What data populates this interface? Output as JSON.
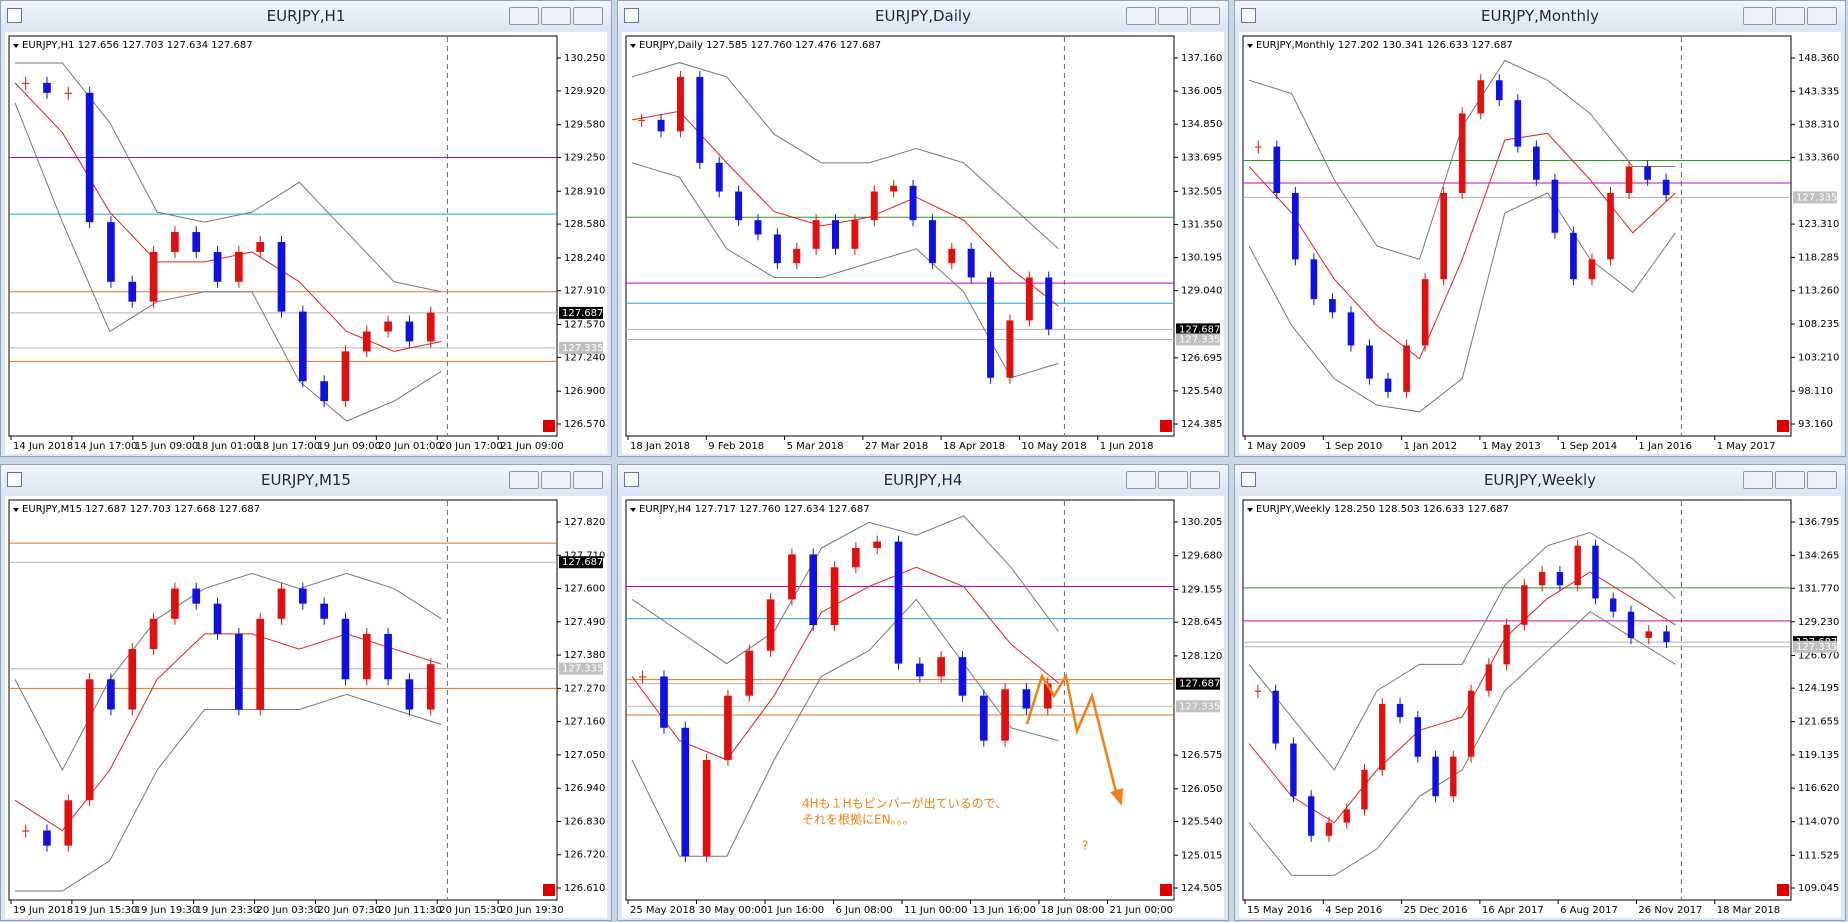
{
  "windows": [
    {
      "title": "EURJPY,H1",
      "info": "EURJPY,H1  127.656 127.703 127.634 127.687",
      "ylim": [
        126.57,
        130.25
      ],
      "yticks": [
        {
          "value": 130.25,
          "label": "130.250"
        },
        {
          "value": 129.92,
          "label": "129.920"
        },
        {
          "value": 129.58,
          "label": "129.580"
        },
        {
          "value": 129.25,
          "label": "129.250"
        },
        {
          "value": 128.91,
          "label": "128.910"
        },
        {
          "value": 128.58,
          "label": "128.580"
        },
        {
          "value": 128.24,
          "label": "128.240"
        },
        {
          "value": 127.91,
          "label": "127.910"
        },
        {
          "value": 127.57,
          "label": "127.570"
        },
        {
          "value": 127.24,
          "label": "127.240"
        },
        {
          "value": 126.9,
          "label": "126.900"
        },
        {
          "value": 126.57,
          "label": "126.570"
        }
      ],
      "xticks": [
        "14 Jun 2018",
        "14 Jun 17:00",
        "15 Jun 09:00",
        "18 Jun 01:00",
        "18 Jun 17:00",
        "19 Jun 09:00",
        "20 Jun 01:00",
        "20 Jun 17:00",
        "21 Jun 09:00"
      ],
      "closes": [
        130.0,
        129.9,
        129.9,
        128.6,
        128.0,
        127.8,
        128.3,
        128.5,
        128.3,
        128.0,
        128.3,
        128.4,
        127.7,
        127.0,
        126.8,
        127.3,
        127.5,
        127.6,
        127.4,
        127.69
      ],
      "upper": [
        130.2,
        130.2,
        129.6,
        128.7,
        128.6,
        128.7,
        129.0,
        128.5,
        128.0,
        127.9
      ],
      "middle": [
        130.0,
        129.5,
        128.7,
        128.2,
        128.2,
        128.3,
        128.0,
        127.5,
        127.3,
        127.4
      ],
      "lower": [
        129.8,
        128.6,
        127.5,
        127.8,
        127.9,
        127.9,
        127.0,
        126.6,
        126.8,
        127.1
      ],
      "hlines": [
        {
          "value": 129.25,
          "color": "#c000c0"
        },
        {
          "value": 128.68,
          "color": "#1fa8d0"
        },
        {
          "value": 127.9,
          "color": "#e07020"
        },
        {
          "value": 127.687,
          "color": "#b0b0b0"
        },
        {
          "value": 127.335,
          "color": "#b0b0b0"
        },
        {
          "value": 127.2,
          "color": "#e07020"
        }
      ],
      "tags": [
        {
          "value": 127.687,
          "label": "127.687",
          "dark": true
        },
        {
          "value": 127.335,
          "label": "127.335",
          "dark": false
        }
      ]
    },
    {
      "title": "EURJPY,Daily",
      "info": "EURJPY,Daily  127.585 127.760 127.476 127.687",
      "ylim": [
        124.385,
        137.16
      ],
      "yticks": [
        {
          "value": 137.16,
          "label": "137.160"
        },
        {
          "value": 136.005,
          "label": "136.005"
        },
        {
          "value": 134.85,
          "label": "134.850"
        },
        {
          "value": 133.695,
          "label": "133.695"
        },
        {
          "value": 132.505,
          "label": "132.505"
        },
        {
          "value": 131.35,
          "label": "131.350"
        },
        {
          "value": 130.195,
          "label": "130.195"
        },
        {
          "value": 129.04,
          "label": "129.040"
        },
        {
          "value": 126.695,
          "label": "126.695"
        },
        {
          "value": 125.54,
          "label": "125.540"
        },
        {
          "value": 124.385,
          "label": "124.385"
        }
      ],
      "xticks": [
        "18 Jan 2018",
        "9 Feb 2018",
        "5 Mar 2018",
        "27 Mar 2018",
        "18 Apr 2018",
        "10 May 2018",
        "1 Jun 2018"
      ],
      "closes": [
        135.0,
        134.6,
        136.5,
        133.5,
        132.5,
        131.5,
        131.0,
        130.0,
        130.5,
        131.5,
        130.5,
        131.5,
        132.5,
        132.7,
        131.5,
        130.0,
        130.5,
        129.5,
        126.0,
        128.0,
        129.5,
        127.69
      ],
      "upper": [
        136.5,
        137.0,
        136.5,
        134.5,
        133.5,
        133.5,
        134.0,
        133.5,
        132.0,
        130.5
      ],
      "middle": [
        135.0,
        135.3,
        133.5,
        131.8,
        131.3,
        131.6,
        132.3,
        131.5,
        129.8,
        128.5
      ],
      "lower": [
        133.5,
        133.0,
        130.5,
        129.5,
        129.5,
        130.0,
        130.5,
        129.0,
        126.0,
        126.5
      ],
      "hlines": [
        {
          "value": 131.6,
          "color": "#2a9a2a"
        },
        {
          "value": 129.3,
          "color": "#c000c0"
        },
        {
          "value": 128.6,
          "color": "#1fa8d0"
        },
        {
          "value": 127.687,
          "color": "#b0b0b0"
        },
        {
          "value": 127.335,
          "color": "#b0b0b0"
        }
      ],
      "tags": [
        {
          "value": 127.687,
          "label": "127.687",
          "dark": true
        },
        {
          "value": 127.335,
          "label": "127.335",
          "dark": false
        }
      ]
    },
    {
      "title": "EURJPY,Monthly",
      "info": "EURJPY,Monthly  127.202 130.341 126.633 127.687",
      "ylim": [
        93.16,
        148.36
      ],
      "yticks": [
        {
          "value": 148.36,
          "label": "148.360"
        },
        {
          "value": 143.335,
          "label": "143.335"
        },
        {
          "value": 138.31,
          "label": "138.310"
        },
        {
          "value": 133.36,
          "label": "133.360"
        },
        {
          "value": 123.31,
          "label": "123.310"
        },
        {
          "value": 118.285,
          "label": "118.285"
        },
        {
          "value": 113.26,
          "label": "113.260"
        },
        {
          "value": 108.235,
          "label": "108.235"
        },
        {
          "value": 103.21,
          "label": "103.210"
        },
        {
          "value": 98.11,
          "label": "98.110"
        },
        {
          "value": 93.16,
          "label": "93.160"
        }
      ],
      "xticks": [
        "1 May 2009",
        "1 Sep 2010",
        "1 Jan 2012",
        "1 May 2013",
        "1 Sep 2014",
        "1 Jan 2016",
        "1 May 2017"
      ],
      "closes": [
        135,
        128,
        118,
        112,
        110,
        105,
        100,
        98,
        105,
        115,
        128,
        140,
        145,
        142,
        135,
        130,
        122,
        115,
        118,
        128,
        132,
        130,
        127.69
      ],
      "upper": [
        145,
        143,
        130,
        120,
        118,
        138,
        148,
        145,
        140,
        132,
        132
      ],
      "middle": [
        132,
        125,
        115,
        108,
        103,
        118,
        136,
        137,
        130,
        122,
        128
      ],
      "lower": [
        120,
        108,
        100,
        96,
        95,
        100,
        125,
        128,
        118,
        113,
        122
      ],
      "hlines": [
        {
          "value": 132.9,
          "color": "#2a9a2a"
        },
        {
          "value": 129.5,
          "color": "#c000c0"
        },
        {
          "value": 127.335,
          "color": "#b0b0b0"
        }
      ],
      "tags": [
        {
          "value": 127.335,
          "label": "127.335",
          "dark": false
        }
      ]
    },
    {
      "title": "EURJPY,M15",
      "info": "EURJPY,M15  127.687 127.703 127.668 127.687",
      "ylim": [
        126.61,
        127.82
      ],
      "yticks": [
        {
          "value": 127.82,
          "label": "127.820"
        },
        {
          "value": 127.71,
          "label": "127.710"
        },
        {
          "value": 127.6,
          "label": "127.600"
        },
        {
          "value": 127.49,
          "label": "127.490"
        },
        {
          "value": 127.38,
          "label": "127.380"
        },
        {
          "value": 127.27,
          "label": "127.270"
        },
        {
          "value": 127.16,
          "label": "127.160"
        },
        {
          "value": 127.05,
          "label": "127.050"
        },
        {
          "value": 126.94,
          "label": "126.940"
        },
        {
          "value": 126.83,
          "label": "126.830"
        },
        {
          "value": 126.72,
          "label": "126.720"
        },
        {
          "value": 126.61,
          "label": "126.610"
        }
      ],
      "xticks": [
        "19 Jun 2018",
        "19 Jun 15:30",
        "19 Jun 19:30",
        "19 Jun 23:30",
        "20 Jun 03:30",
        "20 Jun 07:30",
        "20 Jun 11:30",
        "20 Jun 15:30",
        "20 Jun 19:30"
      ],
      "closes": [
        126.8,
        126.75,
        126.9,
        127.3,
        127.2,
        127.4,
        127.5,
        127.6,
        127.55,
        127.45,
        127.2,
        127.5,
        127.6,
        127.55,
        127.5,
        127.3,
        127.45,
        127.3,
        127.2,
        127.35
      ],
      "upper": [
        127.3,
        127.0,
        127.3,
        127.5,
        127.6,
        127.65,
        127.6,
        127.65,
        127.6,
        127.5
      ],
      "middle": [
        126.9,
        126.8,
        127.0,
        127.3,
        127.45,
        127.45,
        127.4,
        127.45,
        127.4,
        127.35
      ],
      "lower": [
        126.6,
        126.6,
        126.7,
        127.0,
        127.2,
        127.2,
        127.2,
        127.25,
        127.2,
        127.15
      ],
      "hlines": [
        {
          "value": 127.75,
          "color": "#e07020"
        },
        {
          "value": 127.687,
          "color": "#b0b0b0"
        },
        {
          "value": 127.335,
          "color": "#b0b0b0"
        },
        {
          "value": 127.27,
          "color": "#e07020"
        }
      ],
      "tags": [
        {
          "value": 127.687,
          "label": "127.687",
          "dark": true
        },
        {
          "value": 127.335,
          "label": "127.335",
          "dark": false
        }
      ]
    },
    {
      "title": "EURJPY,H4",
      "info": "EURJPY,H4  127.717 127.760 127.634 127.687",
      "ylim": [
        124.505,
        130.205
      ],
      "yticks": [
        {
          "value": 130.205,
          "label": "130.205"
        },
        {
          "value": 129.68,
          "label": "129.680"
        },
        {
          "value": 129.155,
          "label": "129.155"
        },
        {
          "value": 128.645,
          "label": "128.645"
        },
        {
          "value": 128.12,
          "label": "128.120"
        },
        {
          "value": 126.575,
          "label": "126.575"
        },
        {
          "value": 126.05,
          "label": "126.050"
        },
        {
          "value": 125.54,
          "label": "125.540"
        },
        {
          "value": 125.015,
          "label": "125.015"
        },
        {
          "value": 124.505,
          "label": "124.505"
        }
      ],
      "xticks": [
        "25 May 2018",
        "30 May 00:00",
        "1 Jun 16:00",
        "6 Jun 08:00",
        "11 Jun 00:00",
        "13 Jun 16:00",
        "18 Jun 08:00",
        "21 Jun 00:00"
      ],
      "closes": [
        127.8,
        127.0,
        125.0,
        126.5,
        127.5,
        128.2,
        129.0,
        129.7,
        128.6,
        129.5,
        129.8,
        129.9,
        128.0,
        127.8,
        128.1,
        127.5,
        126.8,
        127.6,
        127.3,
        127.69
      ],
      "upper": [
        129.0,
        128.5,
        128.0,
        128.5,
        129.8,
        130.2,
        130.0,
        130.3,
        129.5,
        128.5
      ],
      "middle": [
        127.8,
        126.8,
        126.5,
        127.5,
        128.8,
        129.2,
        129.5,
        129.2,
        128.3,
        127.7
      ],
      "lower": [
        126.5,
        125.0,
        125.0,
        126.5,
        127.8,
        128.2,
        129.0,
        128.0,
        127.0,
        126.8
      ],
      "hlines": [
        {
          "value": 129.2,
          "color": "#c000c0"
        },
        {
          "value": 128.7,
          "color": "#1fa8d0"
        },
        {
          "value": 127.75,
          "color": "#e07020"
        },
        {
          "value": 127.687,
          "color": "#b0b0b0"
        },
        {
          "value": 127.335,
          "color": "#b0b0b0"
        },
        {
          "value": 127.2,
          "color": "#e07020"
        }
      ],
      "tags": [
        {
          "value": 127.687,
          "label": "127.687",
          "dark": true
        },
        {
          "value": 127.335,
          "label": "127.335",
          "dark": false
        }
      ],
      "notes": [
        "4Hも１Hもピンバーが出ているので、",
        "それを根拠にEN。。。",
        "?"
      ]
    },
    {
      "title": "EURJPY,Weekly",
      "info": "EURJPY,Weekly  128.250 128.503 126.633 127.687",
      "ylim": [
        109.045,
        136.795
      ],
      "yticks": [
        {
          "value": 136.795,
          "label": "136.795"
        },
        {
          "value": 134.265,
          "label": "134.265"
        },
        {
          "value": 131.77,
          "label": "131.770"
        },
        {
          "value": 129.23,
          "label": "129.230"
        },
        {
          "value": 126.67,
          "label": "126.670"
        },
        {
          "value": 124.195,
          "label": "124.195"
        },
        {
          "value": 121.655,
          "label": "121.655"
        },
        {
          "value": 119.135,
          "label": "119.135"
        },
        {
          "value": 116.62,
          "label": "116.620"
        },
        {
          "value": 114.07,
          "label": "114.070"
        },
        {
          "value": 111.525,
          "label": "111.525"
        },
        {
          "value": 109.045,
          "label": "109.045"
        }
      ],
      "xticks": [
        "15 May 2016",
        "4 Sep 2016",
        "25 Dec 2016",
        "16 Apr 2017",
        "6 Aug 2017",
        "26 Nov 2017",
        "18 Mar 2018"
      ],
      "closes": [
        124,
        120,
        116,
        113,
        114,
        115,
        118,
        123,
        122,
        119,
        116,
        119,
        124,
        126,
        129,
        132,
        133,
        132,
        135,
        131,
        130,
        128,
        128.5,
        127.69
      ],
      "upper": [
        126,
        122,
        118,
        124,
        126,
        126,
        132,
        135,
        136,
        134,
        131
      ],
      "middle": [
        120,
        116,
        114,
        118,
        121,
        122,
        128,
        131,
        133,
        131,
        129
      ],
      "lower": [
        114,
        110,
        110,
        112,
        116,
        118,
        124,
        127,
        130,
        128,
        126
      ],
      "hlines": [
        {
          "value": 131.8,
          "color": "#2a9a2a"
        },
        {
          "value": 129.3,
          "color": "#c000c0"
        },
        {
          "value": 127.687,
          "color": "#b0b0b0"
        },
        {
          "value": 127.335,
          "color": "#b0b0b0"
        }
      ],
      "tags": [
        {
          "value": 127.687,
          "label": "127.687",
          "dark": true
        },
        {
          "value": 127.335,
          "label": "127.335",
          "dark": false
        }
      ]
    }
  ]
}
